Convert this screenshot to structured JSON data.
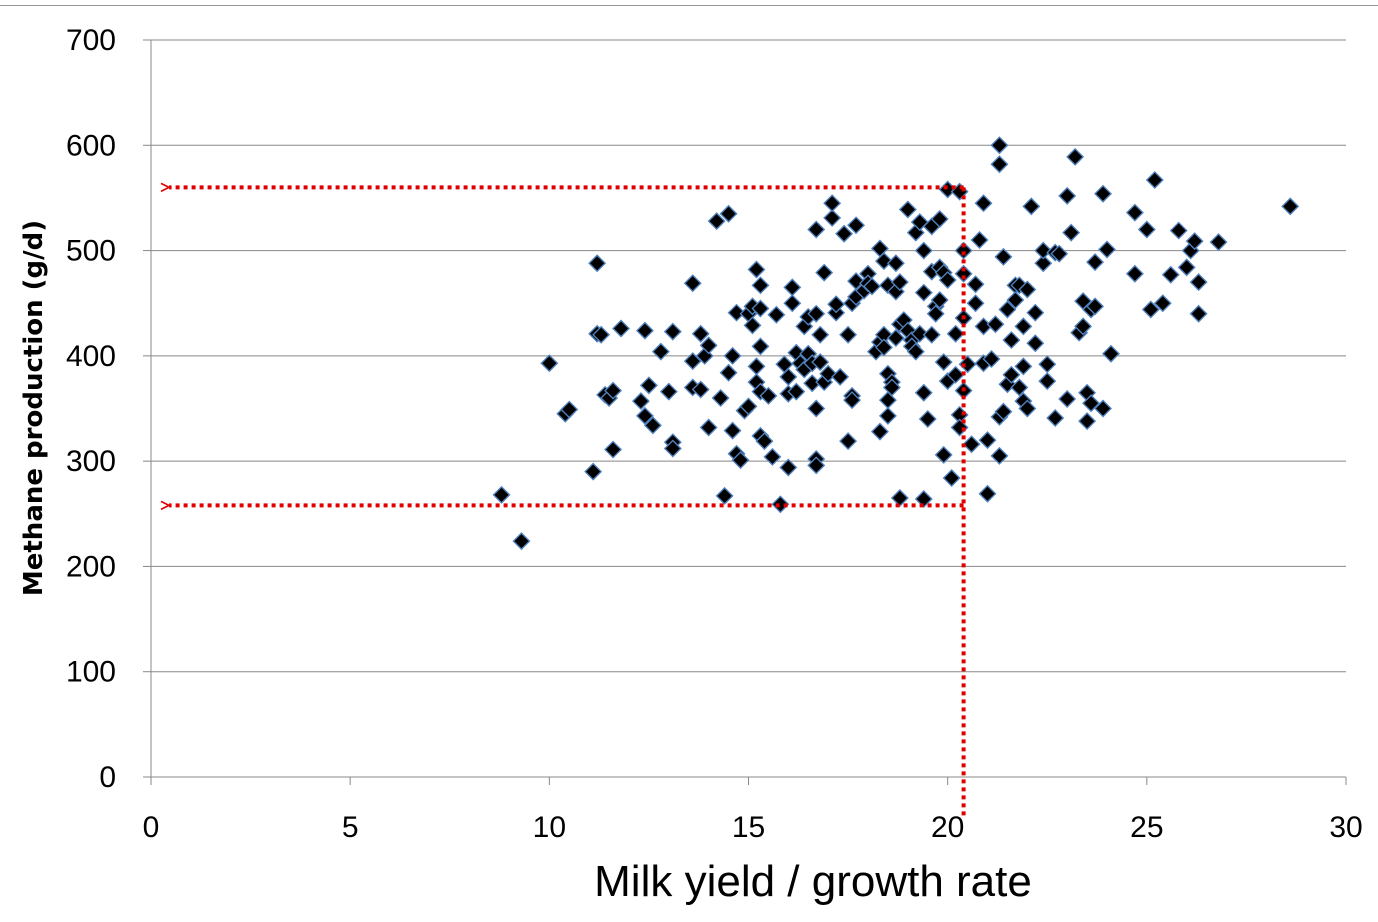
{
  "chart_data": {
    "type": "scatter",
    "title": "",
    "xlabel": "Milk yield / growth rate",
    "ylabel": "Methane production (g/d)",
    "xlim": [
      0,
      30
    ],
    "ylim": [
      0,
      700
    ],
    "xticks": [
      "0",
      "5",
      "10",
      "15",
      "20",
      "25",
      "30"
    ],
    "yticks": [
      "0",
      "100",
      "200",
      "300",
      "400",
      "500",
      "600",
      "700"
    ],
    "grid": "horizontal",
    "legend": "none",
    "colors": {
      "marker": "#000000",
      "marker_edge": "#4f81bd",
      "grid": "#888888",
      "guide": "#e00000"
    },
    "guides": {
      "vertical_x": 20.4,
      "upper_y": 560,
      "lower_y": 258
    },
    "series": [
      {
        "points": [
          [
            8.8,
            268
          ],
          [
            9.3,
            224
          ],
          [
            10.0,
            393
          ],
          [
            10.4,
            345
          ],
          [
            10.5,
            349
          ],
          [
            11.1,
            290
          ],
          [
            11.2,
            488
          ],
          [
            11.2,
            421
          ],
          [
            11.3,
            420
          ],
          [
            11.4,
            363
          ],
          [
            11.5,
            360
          ],
          [
            11.6,
            367
          ],
          [
            11.6,
            311
          ],
          [
            11.8,
            426
          ],
          [
            12.3,
            357
          ],
          [
            12.4,
            424
          ],
          [
            12.4,
            343
          ],
          [
            12.5,
            372
          ],
          [
            12.6,
            334
          ],
          [
            12.8,
            404
          ],
          [
            13.0,
            366
          ],
          [
            13.1,
            423
          ],
          [
            13.1,
            318
          ],
          [
            13.1,
            312
          ],
          [
            13.6,
            469
          ],
          [
            13.6,
            395
          ],
          [
            13.6,
            370
          ],
          [
            13.8,
            421
          ],
          [
            13.8,
            368
          ],
          [
            13.9,
            400
          ],
          [
            14.0,
            410
          ],
          [
            14.0,
            332
          ],
          [
            14.2,
            528
          ],
          [
            14.3,
            360
          ],
          [
            14.4,
            267
          ],
          [
            14.5,
            535
          ],
          [
            14.5,
            384
          ],
          [
            14.6,
            400
          ],
          [
            14.6,
            329
          ],
          [
            14.7,
            441
          ],
          [
            14.7,
            307
          ],
          [
            14.8,
            301
          ],
          [
            14.9,
            348
          ],
          [
            15.0,
            440
          ],
          [
            15.0,
            352
          ],
          [
            15.1,
            447
          ],
          [
            15.1,
            429
          ],
          [
            15.2,
            482
          ],
          [
            15.2,
            390
          ],
          [
            15.2,
            375
          ],
          [
            15.3,
            467
          ],
          [
            15.3,
            445
          ],
          [
            15.3,
            409
          ],
          [
            15.3,
            366
          ],
          [
            15.3,
            324
          ],
          [
            15.4,
            319
          ],
          [
            15.5,
            362
          ],
          [
            15.6,
            304
          ],
          [
            15.7,
            439
          ],
          [
            15.8,
            259
          ],
          [
            15.9,
            392
          ],
          [
            16.0,
            380
          ],
          [
            16.0,
            364
          ],
          [
            16.0,
            294
          ],
          [
            16.1,
            465
          ],
          [
            16.1,
            450
          ],
          [
            16.2,
            403
          ],
          [
            16.2,
            366
          ],
          [
            16.3,
            393
          ],
          [
            16.4,
            387
          ],
          [
            16.4,
            428
          ],
          [
            16.5,
            437
          ],
          [
            16.5,
            402
          ],
          [
            16.6,
            393
          ],
          [
            16.6,
            374
          ],
          [
            16.7,
            520
          ],
          [
            16.7,
            440
          ],
          [
            16.7,
            350
          ],
          [
            16.7,
            302
          ],
          [
            16.7,
            296
          ],
          [
            16.8,
            420
          ],
          [
            16.8,
            394
          ],
          [
            16.9,
            375
          ],
          [
            16.9,
            479
          ],
          [
            17.0,
            383
          ],
          [
            17.1,
            531
          ],
          [
            17.1,
            545
          ],
          [
            17.2,
            441
          ],
          [
            17.2,
            449
          ],
          [
            17.3,
            380
          ],
          [
            17.4,
            516
          ],
          [
            17.5,
            319
          ],
          [
            17.5,
            420
          ],
          [
            17.6,
            450
          ],
          [
            17.6,
            362
          ],
          [
            17.6,
            358
          ],
          [
            17.7,
            524
          ],
          [
            17.7,
            456
          ],
          [
            17.7,
            471
          ],
          [
            17.9,
            462
          ],
          [
            18.0,
            478
          ],
          [
            18.0,
            469
          ],
          [
            18.1,
            466
          ],
          [
            18.2,
            404
          ],
          [
            18.3,
            502
          ],
          [
            18.3,
            413
          ],
          [
            18.3,
            328
          ],
          [
            18.4,
            490
          ],
          [
            18.4,
            420
          ],
          [
            18.4,
            408
          ],
          [
            18.5,
            467
          ],
          [
            18.5,
            383
          ],
          [
            18.5,
            343
          ],
          [
            18.5,
            358
          ],
          [
            18.6,
            375
          ],
          [
            18.6,
            370
          ],
          [
            18.7,
            488
          ],
          [
            18.7,
            461
          ],
          [
            18.7,
            417
          ],
          [
            18.8,
            470
          ],
          [
            18.8,
            430
          ],
          [
            18.8,
            265
          ],
          [
            18.9,
            434
          ],
          [
            19.0,
            424
          ],
          [
            19.0,
            539
          ],
          [
            19.1,
            415
          ],
          [
            19.1,
            409
          ],
          [
            19.2,
            404
          ],
          [
            19.2,
            517
          ],
          [
            19.3,
            527
          ],
          [
            19.3,
            421
          ],
          [
            19.4,
            500
          ],
          [
            19.4,
            460
          ],
          [
            19.4,
            365
          ],
          [
            19.4,
            264
          ],
          [
            19.5,
            340
          ],
          [
            19.6,
            523
          ],
          [
            19.6,
            480
          ],
          [
            19.6,
            420
          ],
          [
            19.7,
            447
          ],
          [
            19.7,
            440
          ],
          [
            19.8,
            530
          ],
          [
            19.8,
            453
          ],
          [
            19.8,
            484
          ],
          [
            19.9,
            479
          ],
          [
            19.9,
            394
          ],
          [
            19.9,
            306
          ],
          [
            20.0,
            558
          ],
          [
            20.0,
            472
          ],
          [
            20.0,
            376
          ],
          [
            20.1,
            284
          ],
          [
            20.2,
            421
          ],
          [
            20.2,
            382
          ],
          [
            20.3,
            344
          ],
          [
            20.3,
            332
          ],
          [
            20.3,
            556
          ],
          [
            20.4,
            500
          ],
          [
            20.4,
            478
          ],
          [
            20.4,
            436
          ],
          [
            20.4,
            367
          ],
          [
            20.5,
            392
          ],
          [
            20.6,
            316
          ],
          [
            20.7,
            468
          ],
          [
            20.7,
            450
          ],
          [
            20.8,
            510
          ],
          [
            20.9,
            545
          ],
          [
            20.9,
            428
          ],
          [
            20.9,
            393
          ],
          [
            21.0,
            269
          ],
          [
            21.0,
            320
          ],
          [
            21.1,
            397
          ],
          [
            21.2,
            430
          ],
          [
            21.3,
            600
          ],
          [
            21.3,
            582
          ],
          [
            21.3,
            342
          ],
          [
            21.3,
            305
          ],
          [
            21.4,
            494
          ],
          [
            21.4,
            347
          ],
          [
            21.5,
            444
          ],
          [
            21.5,
            373
          ],
          [
            21.6,
            415
          ],
          [
            21.6,
            382
          ],
          [
            21.7,
            467
          ],
          [
            21.7,
            453
          ],
          [
            21.8,
            467
          ],
          [
            21.8,
            370
          ],
          [
            21.9,
            357
          ],
          [
            21.9,
            428
          ],
          [
            21.9,
            390
          ],
          [
            22.0,
            463
          ],
          [
            22.0,
            350
          ],
          [
            22.1,
            542
          ],
          [
            22.2,
            441
          ],
          [
            22.2,
            412
          ],
          [
            22.4,
            488
          ],
          [
            22.4,
            500
          ],
          [
            22.5,
            376
          ],
          [
            22.5,
            392
          ],
          [
            22.7,
            498
          ],
          [
            22.7,
            341
          ],
          [
            22.8,
            497
          ],
          [
            23.0,
            552
          ],
          [
            23.0,
            359
          ],
          [
            23.1,
            517
          ],
          [
            23.2,
            589
          ],
          [
            23.3,
            422
          ],
          [
            23.4,
            428
          ],
          [
            23.4,
            452
          ],
          [
            23.5,
            338
          ],
          [
            23.5,
            365
          ],
          [
            23.6,
            444
          ],
          [
            23.6,
            355
          ],
          [
            23.7,
            447
          ],
          [
            23.7,
            489
          ],
          [
            23.9,
            554
          ],
          [
            23.9,
            350
          ],
          [
            24.0,
            501
          ],
          [
            24.1,
            402
          ],
          [
            24.7,
            536
          ],
          [
            24.7,
            478
          ],
          [
            25.0,
            520
          ],
          [
            25.1,
            444
          ],
          [
            25.2,
            567
          ],
          [
            25.4,
            450
          ],
          [
            25.6,
            477
          ],
          [
            25.8,
            519
          ],
          [
            26.0,
            484
          ],
          [
            26.1,
            500
          ],
          [
            26.2,
            509
          ],
          [
            26.3,
            470
          ],
          [
            26.3,
            440
          ],
          [
            26.8,
            508
          ],
          [
            28.6,
            542
          ]
        ]
      }
    ]
  }
}
